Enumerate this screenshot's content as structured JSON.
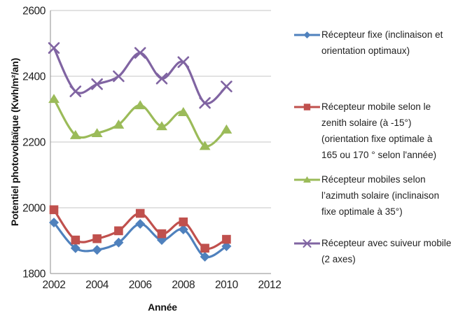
{
  "chart_data": {
    "type": "line",
    "title": "",
    "xlabel": "Année",
    "ylabel": "Potentiel photovoltaïque (Kwh/m²/an)",
    "x": [
      2002,
      2003,
      2004,
      2005,
      2006,
      2007,
      2008,
      2009,
      2010
    ],
    "xticks": [
      2002,
      2004,
      2006,
      2008,
      2010,
      2012
    ],
    "yticks": [
      1800,
      2000,
      2200,
      2400,
      2600
    ],
    "xlim": [
      2002,
      2012
    ],
    "ylim": [
      1800,
      2600
    ],
    "grid": "horizontal-only",
    "legend_position": "right",
    "line_style": "smoothed",
    "series": [
      {
        "name": "Récepteur fixe (inclinaison et\norientation optimaux)",
        "marker": "diamond",
        "color": "#4F81BD",
        "values": [
          1955,
          1877,
          1872,
          1894,
          1951,
          1902,
          1934,
          1851,
          1883
        ]
      },
      {
        "name": "Récepteur mobile selon le\nzenith solaire (à -15°)\n(orientation fixe optimale à\n165 ou 170 ° selon l'année)",
        "marker": "square",
        "color": "#C0504D",
        "values": [
          1994,
          1902,
          1906,
          1930,
          1983,
          1921,
          1957,
          1877,
          1904
        ]
      },
      {
        "name": "Récepteur mobiles selon\nl’azimuth solaire (inclinaison\nfixe optimale à 35°)",
        "marker": "triangle",
        "color": "#9BBB59",
        "values": [
          2331,
          2221,
          2227,
          2253,
          2312,
          2248,
          2291,
          2188,
          2238
        ]
      },
      {
        "name": "Récepteur avec suiveur mobile\n(2 axes)",
        "marker": "x",
        "color": "#8064A2",
        "values": [
          2486,
          2354,
          2376,
          2400,
          2471,
          2393,
          2443,
          2319,
          2369
        ]
      }
    ]
  }
}
